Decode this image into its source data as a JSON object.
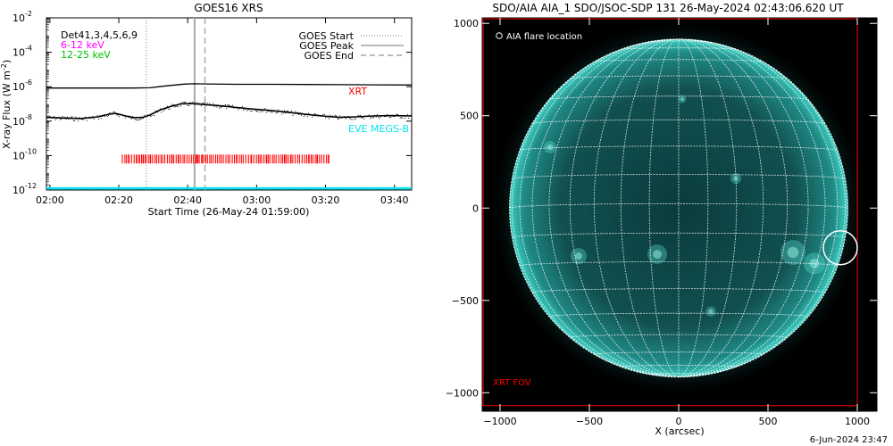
{
  "footer": {
    "timestamp": "6-Jun-2024 23:47"
  },
  "chart_data": [
    {
      "type": "line",
      "title": "GOES16 XRS",
      "xlabel": "Start Time (26-May-24 01:59:00)",
      "ylabel": "X-ray Flux (W m⁻²)",
      "ylabel_main": "X-ray Flux (W m",
      "ylabel_sup": "-2",
      "ylabel_close": ")",
      "x_tick_labels": [
        "02:00",
        "02:20",
        "02:40",
        "03:00",
        "03:20",
        "03:40"
      ],
      "x_ticks_minutes": [
        1,
        21,
        41,
        61,
        81,
        101
      ],
      "xlim_minutes": [
        0,
        106
      ],
      "y_log": true,
      "ylim_exp": [
        -12,
        -2
      ],
      "y_ticks": [
        {
          "exp": -2,
          "base": "10",
          "sup": "-2"
        },
        {
          "exp": -4,
          "base": "10",
          "sup": "-4"
        },
        {
          "exp": -6,
          "base": "10",
          "sup": "-6"
        },
        {
          "exp": -8,
          "base": "10",
          "sup": "-8"
        },
        {
          "exp": -10,
          "base": "10",
          "sup": "-10"
        },
        {
          "exp": -12,
          "base": "10",
          "sup": "-12"
        }
      ],
      "goes_times_minutes": {
        "start": 29,
        "peak": 43,
        "end": 46
      },
      "legend": [
        {
          "label": "GOES Start",
          "style": "dotted"
        },
        {
          "label": "GOES Peak",
          "style": "solid"
        },
        {
          "label": "GOES End",
          "style": "dashed"
        }
      ],
      "instrument_legend": [
        {
          "label": "Det41,3,4,5,6,9",
          "color": "#000000"
        },
        {
          "label": "6-12 keV",
          "color": "#ff00ff"
        },
        {
          "label": "12-25 keV",
          "color": "#00c000"
        }
      ],
      "annotations": [
        {
          "text": "XRT",
          "color": "#ff0000"
        },
        {
          "text": "EVE MEGS-B",
          "color": "#00e5ee"
        }
      ],
      "series": [
        {
          "name": "GOES long channel",
          "color": "#000000",
          "x_minutes": [
            0,
            10,
            20,
            25,
            30,
            35,
            40,
            43,
            46,
            55,
            65,
            75,
            85,
            95,
            106
          ],
          "log_flux": [
            -6.08,
            -6.08,
            -6.08,
            -6.08,
            -6.06,
            -5.95,
            -5.85,
            -5.83,
            -5.84,
            -5.86,
            -5.86,
            -5.87,
            -5.88,
            -5.89,
            -5.9
          ]
        },
        {
          "name": "GOES short channel",
          "color": "#000000",
          "x_minutes": [
            0,
            5,
            10,
            15,
            18,
            20,
            22,
            25,
            28,
            30,
            33,
            36,
            39,
            42,
            45,
            50,
            55,
            60,
            65,
            70,
            75,
            80,
            85,
            90,
            95,
            100,
            106
          ],
          "log_flux": [
            -7.78,
            -7.82,
            -7.85,
            -7.75,
            -7.6,
            -7.55,
            -7.65,
            -7.8,
            -7.78,
            -7.65,
            -7.35,
            -7.15,
            -7.0,
            -6.98,
            -7.02,
            -7.1,
            -7.2,
            -7.3,
            -7.38,
            -7.48,
            -7.6,
            -7.7,
            -7.78,
            -7.75,
            -7.7,
            -7.68,
            -7.7
          ]
        },
        {
          "name": "EVE MEGS-B",
          "color": "#00e5ee",
          "x_minutes": [
            0,
            106
          ],
          "log_flux": [
            -11.9,
            -11.9
          ]
        }
      ],
      "xrt_observations": {
        "color": "#ff0000",
        "log_flux": -10.2,
        "start_minute": 22,
        "end_minute": 82
      }
    },
    {
      "type": "scatter",
      "title": "SDO/AIA AIA_1 SDO/JSOC-SDP 131 26-May-2024 02:43:06.620 UT",
      "xlabel": "X (arcsec)",
      "ylabel": "",
      "xlim": [
        -1100,
        1110
      ],
      "ylim": [
        -1100,
        1030
      ],
      "x_ticks": [
        -1000,
        -500,
        0,
        500,
        1000
      ],
      "y_ticks": [
        1000,
        500,
        0,
        -500,
        -1000
      ],
      "legend_label": "AIA flare location",
      "solar_radius_arcsec": 947,
      "grid_spacing_deg": 10,
      "flare_location": {
        "x": 905,
        "y": -215,
        "radius": 95
      },
      "xrt_fov": {
        "label": "XRT FOV",
        "color": "#ff0000",
        "x": [
          -1100,
          1000
        ],
        "y": [
          -1070,
          1030
        ]
      }
    }
  ]
}
